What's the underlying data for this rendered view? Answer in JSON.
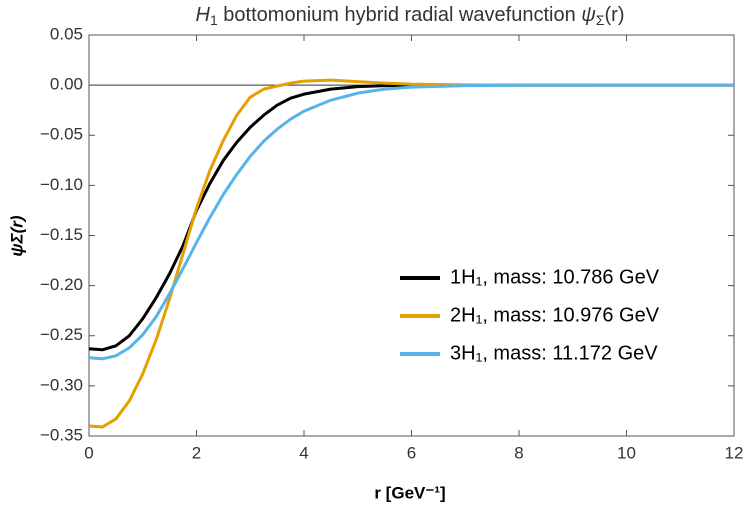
{
  "chart_data": {
    "type": "line",
    "title": [
      {
        "text": "H",
        "style": "italic"
      },
      {
        "text": "1",
        "style": "sub"
      },
      {
        "text": " bottomonium hybrid radial wavefunction ",
        "style": "normal"
      },
      {
        "text": "ψ",
        "style": "italic"
      },
      {
        "text": "Σ",
        "style": "sub"
      },
      {
        "text": "(r)",
        "style": "normal"
      }
    ],
    "x_label": "r [GeV⁻¹]",
    "y_label": "ψΣ(r)",
    "x": [
      0,
      0.25,
      0.5,
      0.75,
      1.0,
      1.25,
      1.5,
      1.75,
      2.0,
      2.25,
      2.5,
      2.75,
      3.0,
      3.25,
      3.5,
      3.75,
      4.0,
      4.5,
      5,
      5.5,
      6,
      7,
      8,
      10,
      12
    ],
    "series": [
      {
        "name": "1H₁, mass: 10.786 GeV",
        "color": "#000000",
        "values": [
          -0.263,
          -0.264,
          -0.26,
          -0.25,
          -0.233,
          -0.212,
          -0.188,
          -0.16,
          -0.125,
          -0.098,
          -0.075,
          -0.057,
          -0.042,
          -0.03,
          -0.02,
          -0.013,
          -0.009,
          -0.004,
          -0.0015,
          -0.0005,
          -0.0002,
          0,
          0,
          0,
          0
        ]
      },
      {
        "name": "2H₁, mass: 10.976 GeV",
        "color": "#e69f00",
        "values": [
          -0.34,
          -0.341,
          -0.333,
          -0.315,
          -0.288,
          -0.254,
          -0.213,
          -0.168,
          -0.123,
          -0.085,
          -0.055,
          -0.03,
          -0.012,
          -0.004,
          -0.001,
          0.002,
          0.004,
          0.005,
          0.0035,
          0.002,
          0.001,
          0.0002,
          0,
          0,
          0
        ]
      },
      {
        "name": "3H₁, mass: 11.172 GeV",
        "color": "#56b4e9",
        "values": [
          -0.272,
          -0.273,
          -0.27,
          -0.262,
          -0.249,
          -0.231,
          -0.208,
          -0.183,
          -0.157,
          -0.132,
          -0.109,
          -0.089,
          -0.071,
          -0.056,
          -0.044,
          -0.034,
          -0.026,
          -0.015,
          -0.008,
          -0.004,
          -0.002,
          -0.0005,
          -0.0001,
          0,
          0
        ]
      }
    ],
    "xlim": [
      0,
      12
    ],
    "xticks": [
      0,
      2,
      4,
      6,
      8,
      10,
      12
    ],
    "ylim": [
      -0.35,
      0.05
    ],
    "yticks": [
      0.05,
      {
        "value": 0,
        "label": "0.00"
      },
      {
        "value": -0.05,
        "label": "−0.05"
      },
      {
        "value": -0.1,
        "label": "−0.10"
      },
      {
        "value": -0.15,
        "label": "−0.15"
      },
      {
        "value": -0.2,
        "label": "−0.20"
      },
      {
        "value": -0.25,
        "label": "−0.25"
      },
      {
        "value": -0.3,
        "label": "−0.30"
      },
      {
        "value": -0.35,
        "label": "−0.35"
      }
    ],
    "legend": "lower right"
  }
}
